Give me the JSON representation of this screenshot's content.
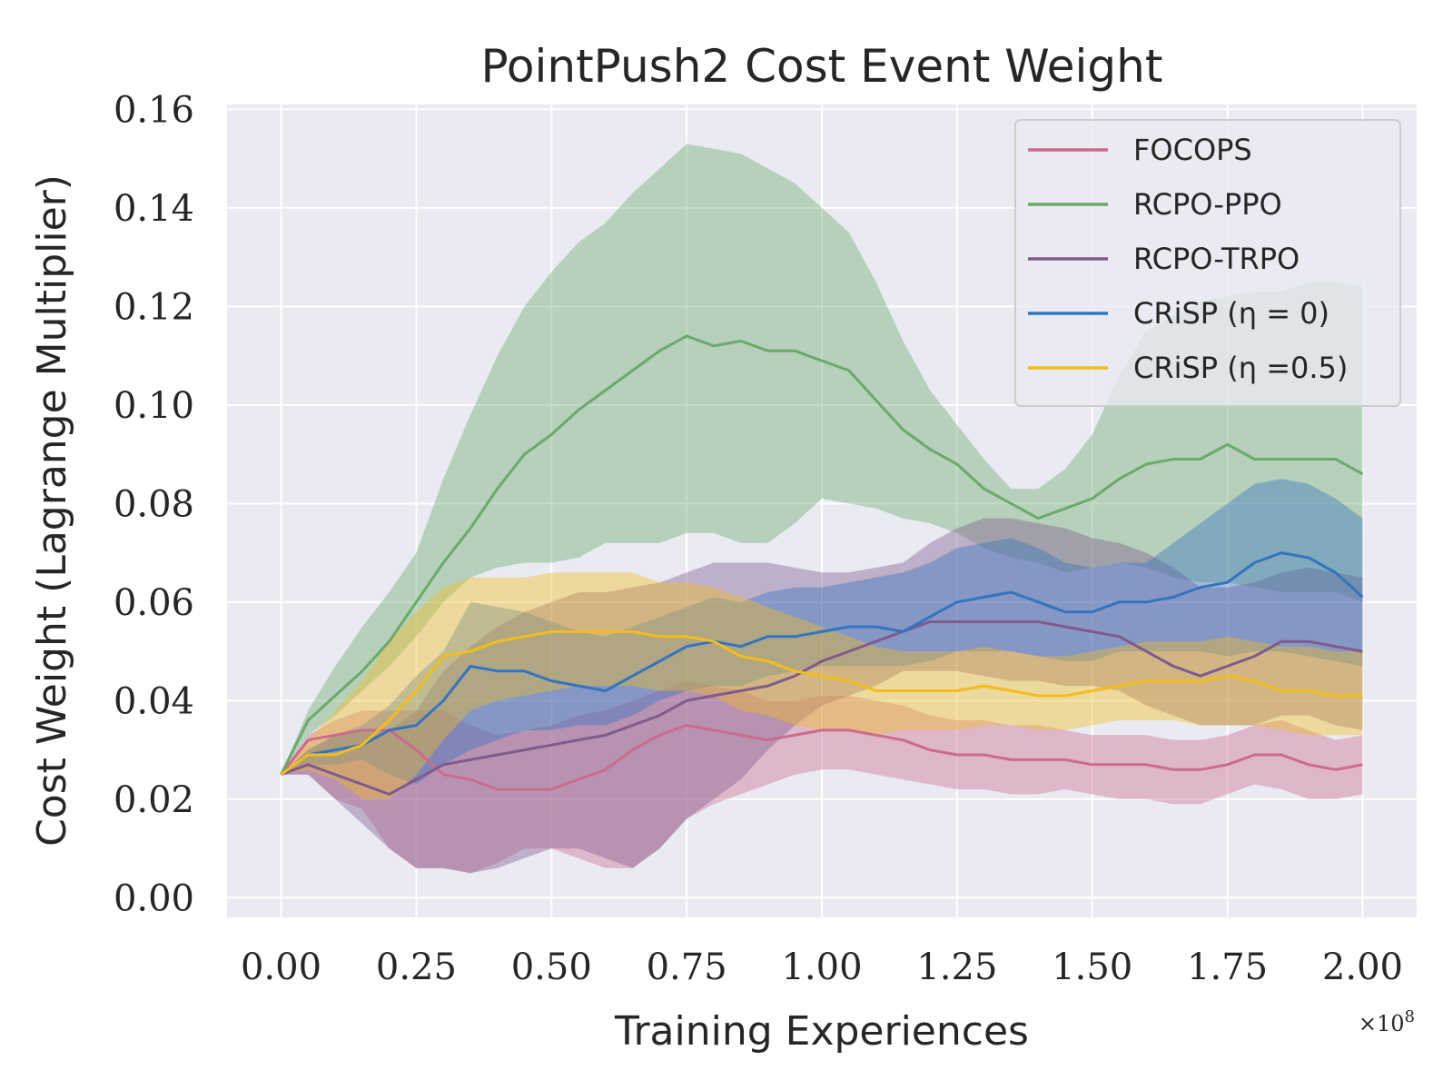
{
  "chart_data": {
    "type": "line",
    "title": "PointPush2 Cost Event Weight",
    "xlabel": "Training Experiences",
    "ylabel": "Cost Weight (Lagrange Multiplier)",
    "x_offset_label": "×10",
    "x_offset_exponent": "8",
    "xlim": [
      -0.1,
      2.1
    ],
    "ylim": [
      -0.004,
      0.161
    ],
    "xticks": [
      0.0,
      0.25,
      0.5,
      0.75,
      1.0,
      1.25,
      1.5,
      1.75,
      2.0
    ],
    "xtick_labels": [
      "0.00",
      "0.25",
      "0.50",
      "0.75",
      "1.00",
      "1.25",
      "1.50",
      "1.75",
      "2.00"
    ],
    "yticks": [
      0.0,
      0.02,
      0.04,
      0.06,
      0.08,
      0.1,
      0.12,
      0.14,
      0.16
    ],
    "ytick_labels": [
      "0.00",
      "0.02",
      "0.04",
      "0.06",
      "0.08",
      "0.10",
      "0.12",
      "0.14",
      "0.16"
    ],
    "grid": true,
    "legend_position": "top-right",
    "x": [
      0.0,
      0.05,
      0.1,
      0.15,
      0.2,
      0.25,
      0.3,
      0.35,
      0.4,
      0.45,
      0.5,
      0.55,
      0.6,
      0.65,
      0.7,
      0.75,
      0.8,
      0.85,
      0.9,
      0.95,
      1.0,
      1.05,
      1.1,
      1.15,
      1.2,
      1.25,
      1.3,
      1.35,
      1.4,
      1.45,
      1.5,
      1.55,
      1.6,
      1.65,
      1.7,
      1.75,
      1.8,
      1.85,
      1.9,
      1.95,
      2.0
    ],
    "series": [
      {
        "name": "FOCOPS",
        "color": "#cc6b8e",
        "values": [
          0.025,
          0.032,
          0.033,
          0.034,
          0.034,
          0.03,
          0.025,
          0.024,
          0.022,
          0.022,
          0.022,
          0.024,
          0.026,
          0.03,
          0.033,
          0.035,
          0.034,
          0.033,
          0.032,
          0.033,
          0.034,
          0.034,
          0.033,
          0.032,
          0.03,
          0.029,
          0.029,
          0.028,
          0.028,
          0.028,
          0.027,
          0.027,
          0.027,
          0.026,
          0.026,
          0.027,
          0.029,
          0.029,
          0.027,
          0.026,
          0.027
        ],
        "lower": [
          0.025,
          0.025,
          0.02,
          0.018,
          0.01,
          0.006,
          0.006,
          0.005,
          0.007,
          0.01,
          0.01,
          0.008,
          0.006,
          0.006,
          0.01,
          0.016,
          0.019,
          0.021,
          0.023,
          0.025,
          0.026,
          0.026,
          0.025,
          0.024,
          0.023,
          0.022,
          0.022,
          0.021,
          0.021,
          0.022,
          0.021,
          0.02,
          0.02,
          0.019,
          0.019,
          0.021,
          0.023,
          0.022,
          0.02,
          0.02,
          0.021
        ],
        "upper": [
          0.025,
          0.033,
          0.036,
          0.038,
          0.038,
          0.038,
          0.038,
          0.035,
          0.033,
          0.034,
          0.035,
          0.037,
          0.038,
          0.04,
          0.042,
          0.044,
          0.043,
          0.042,
          0.04,
          0.04,
          0.041,
          0.041,
          0.04,
          0.039,
          0.037,
          0.036,
          0.036,
          0.035,
          0.035,
          0.034,
          0.033,
          0.033,
          0.033,
          0.032,
          0.032,
          0.033,
          0.035,
          0.036,
          0.034,
          0.032,
          0.033
        ]
      },
      {
        "name": "RCPO-PPO",
        "color": "#6aaa6a",
        "values": [
          0.025,
          0.036,
          0.041,
          0.046,
          0.052,
          0.06,
          0.068,
          0.075,
          0.083,
          0.09,
          0.094,
          0.099,
          0.103,
          0.107,
          0.111,
          0.114,
          0.112,
          0.113,
          0.111,
          0.111,
          0.109,
          0.107,
          0.101,
          0.095,
          0.091,
          0.088,
          0.083,
          0.08,
          0.077,
          0.079,
          0.081,
          0.085,
          0.088,
          0.089,
          0.089,
          0.092,
          0.089,
          0.089,
          0.089,
          0.089,
          0.086
        ],
        "lower": [
          0.025,
          0.033,
          0.037,
          0.042,
          0.047,
          0.053,
          0.06,
          0.065,
          0.067,
          0.068,
          0.068,
          0.069,
          0.072,
          0.072,
          0.072,
          0.074,
          0.074,
          0.072,
          0.072,
          0.076,
          0.081,
          0.08,
          0.079,
          0.077,
          0.076,
          0.074,
          0.071,
          0.069,
          0.068,
          0.066,
          0.067,
          0.068,
          0.067,
          0.065,
          0.064,
          0.064,
          0.063,
          0.062,
          0.062,
          0.062,
          0.06
        ],
        "upper": [
          0.025,
          0.038,
          0.047,
          0.055,
          0.062,
          0.07,
          0.085,
          0.098,
          0.11,
          0.12,
          0.127,
          0.133,
          0.137,
          0.143,
          0.148,
          0.153,
          0.152,
          0.151,
          0.148,
          0.145,
          0.14,
          0.135,
          0.125,
          0.113,
          0.103,
          0.096,
          0.089,
          0.083,
          0.083,
          0.087,
          0.094,
          0.106,
          0.115,
          0.118,
          0.121,
          0.122,
          0.123,
          0.123,
          0.125,
          0.125,
          0.124
        ]
      },
      {
        "name": "RCPO-TRPO",
        "color": "#7f5a8c",
        "values": [
          0.025,
          0.027,
          0.025,
          0.023,
          0.021,
          0.024,
          0.027,
          0.028,
          0.029,
          0.03,
          0.031,
          0.032,
          0.033,
          0.035,
          0.037,
          0.04,
          0.041,
          0.042,
          0.043,
          0.045,
          0.048,
          0.05,
          0.052,
          0.054,
          0.056,
          0.056,
          0.056,
          0.056,
          0.056,
          0.055,
          0.054,
          0.053,
          0.05,
          0.047,
          0.045,
          0.047,
          0.049,
          0.052,
          0.052,
          0.051,
          0.05
        ],
        "lower": [
          0.025,
          0.025,
          0.02,
          0.015,
          0.01,
          0.006,
          0.006,
          0.005,
          0.006,
          0.008,
          0.01,
          0.01,
          0.008,
          0.006,
          0.01,
          0.016,
          0.02,
          0.024,
          0.03,
          0.035,
          0.039,
          0.041,
          0.043,
          0.046,
          0.046,
          0.046,
          0.045,
          0.044,
          0.044,
          0.043,
          0.043,
          0.042,
          0.039,
          0.037,
          0.035,
          0.035,
          0.035,
          0.037,
          0.037,
          0.035,
          0.034
        ],
        "upper": [
          0.025,
          0.03,
          0.033,
          0.034,
          0.034,
          0.038,
          0.046,
          0.051,
          0.055,
          0.058,
          0.06,
          0.062,
          0.062,
          0.063,
          0.064,
          0.066,
          0.068,
          0.068,
          0.068,
          0.067,
          0.066,
          0.066,
          0.067,
          0.068,
          0.072,
          0.075,
          0.077,
          0.077,
          0.076,
          0.075,
          0.073,
          0.072,
          0.07,
          0.067,
          0.063,
          0.063,
          0.064,
          0.066,
          0.067,
          0.066,
          0.065
        ]
      },
      {
        "name": "CRiSP (η = 0)",
        "color": "#3274c0",
        "values": [
          0.025,
          0.029,
          0.03,
          0.031,
          0.034,
          0.035,
          0.04,
          0.047,
          0.046,
          0.046,
          0.044,
          0.043,
          0.042,
          0.045,
          0.048,
          0.051,
          0.052,
          0.051,
          0.053,
          0.053,
          0.054,
          0.055,
          0.055,
          0.054,
          0.057,
          0.06,
          0.061,
          0.062,
          0.06,
          0.058,
          0.058,
          0.06,
          0.06,
          0.061,
          0.063,
          0.064,
          0.068,
          0.07,
          0.069,
          0.066,
          0.061
        ],
        "lower": [
          0.025,
          0.027,
          0.027,
          0.028,
          0.025,
          0.023,
          0.027,
          0.03,
          0.032,
          0.034,
          0.034,
          0.035,
          0.035,
          0.037,
          0.04,
          0.042,
          0.043,
          0.043,
          0.045,
          0.046,
          0.047,
          0.047,
          0.047,
          0.047,
          0.048,
          0.05,
          0.05,
          0.05,
          0.049,
          0.048,
          0.048,
          0.05,
          0.05,
          0.05,
          0.05,
          0.049,
          0.05,
          0.05,
          0.049,
          0.048,
          0.047
        ],
        "upper": [
          0.025,
          0.03,
          0.033,
          0.035,
          0.039,
          0.045,
          0.05,
          0.06,
          0.059,
          0.058,
          0.056,
          0.054,
          0.053,
          0.055,
          0.057,
          0.059,
          0.061,
          0.06,
          0.062,
          0.063,
          0.063,
          0.064,
          0.065,
          0.066,
          0.068,
          0.071,
          0.072,
          0.073,
          0.071,
          0.068,
          0.067,
          0.068,
          0.068,
          0.072,
          0.076,
          0.08,
          0.084,
          0.085,
          0.084,
          0.081,
          0.077
        ]
      },
      {
        "name": "CRiSP (η =0.5)",
        "color": "#f2bd1d",
        "values": [
          0.025,
          0.029,
          0.029,
          0.031,
          0.036,
          0.042,
          0.049,
          0.05,
          0.052,
          0.053,
          0.054,
          0.054,
          0.054,
          0.054,
          0.053,
          0.053,
          0.052,
          0.049,
          0.048,
          0.046,
          0.045,
          0.044,
          0.042,
          0.042,
          0.042,
          0.042,
          0.043,
          0.042,
          0.041,
          0.041,
          0.042,
          0.043,
          0.044,
          0.044,
          0.044,
          0.045,
          0.044,
          0.042,
          0.042,
          0.041,
          0.041
        ],
        "lower": [
          0.025,
          0.026,
          0.024,
          0.02,
          0.02,
          0.025,
          0.032,
          0.038,
          0.04,
          0.041,
          0.042,
          0.043,
          0.043,
          0.043,
          0.042,
          0.042,
          0.041,
          0.038,
          0.037,
          0.035,
          0.034,
          0.034,
          0.033,
          0.034,
          0.034,
          0.034,
          0.035,
          0.035,
          0.034,
          0.034,
          0.035,
          0.036,
          0.036,
          0.036,
          0.035,
          0.035,
          0.035,
          0.034,
          0.033,
          0.033,
          0.033
        ],
        "upper": [
          0.025,
          0.032,
          0.038,
          0.044,
          0.052,
          0.058,
          0.063,
          0.065,
          0.065,
          0.065,
          0.066,
          0.066,
          0.066,
          0.066,
          0.064,
          0.064,
          0.063,
          0.061,
          0.059,
          0.057,
          0.055,
          0.053,
          0.051,
          0.05,
          0.05,
          0.05,
          0.051,
          0.05,
          0.049,
          0.049,
          0.05,
          0.051,
          0.052,
          0.052,
          0.052,
          0.053,
          0.052,
          0.051,
          0.051,
          0.05,
          0.05
        ]
      }
    ]
  }
}
